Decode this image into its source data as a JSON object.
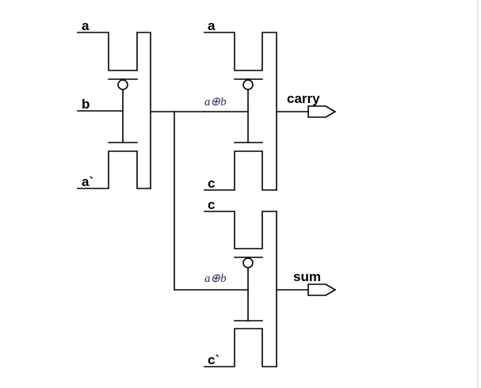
{
  "labels": {
    "g1_top": "a",
    "g1_mid": "b",
    "g1_bot": "a`",
    "g2_top": "a",
    "g2_bot": "c",
    "g2_ctrl": "a⊕b",
    "g3_top": "c",
    "g3_bot": "c`",
    "g3_ctrl": "a⊕b"
  },
  "outputs": {
    "carry": "carry",
    "sum": "sum"
  }
}
